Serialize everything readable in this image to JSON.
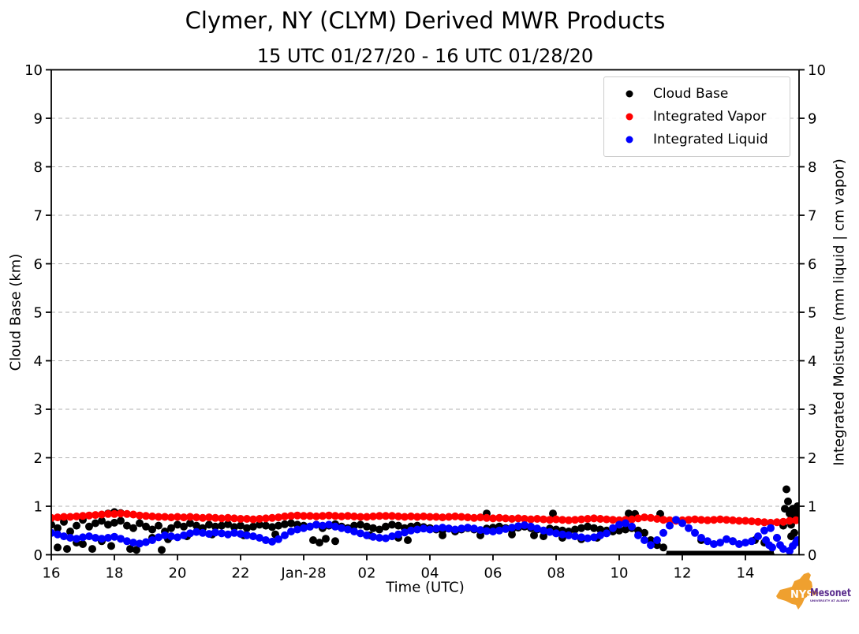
{
  "header": {
    "title": "Clymer, NY (CLYM) Derived MWR Products",
    "subtitle": "15 UTC 01/27/20 - 16 UTC 01/28/20"
  },
  "axes": {
    "x_label": "Time (UTC)",
    "y_left_label": "Cloud Base (km)",
    "y_right_label": "Integrated Moisture (mm liquid | cm vapor)",
    "y_tick_labels": [
      "0",
      "1",
      "2",
      "3",
      "4",
      "5",
      "6",
      "7",
      "8",
      "9",
      "10"
    ],
    "y_tick_values": [
      0,
      1,
      2,
      3,
      4,
      5,
      6,
      7,
      8,
      9,
      10
    ],
    "x_tick_labels": [
      "16",
      "18",
      "20",
      "22",
      "Jan-28",
      "02",
      "04",
      "06",
      "08",
      "10",
      "12",
      "14"
    ],
    "x_tick_hours": [
      16,
      18,
      20,
      22,
      24,
      26,
      28,
      30,
      32,
      34,
      36,
      38
    ]
  },
  "legend": {
    "items": [
      {
        "label": "Cloud Base",
        "color": "#000000"
      },
      {
        "label": "Integrated Vapor",
        "color": "#ff0000"
      },
      {
        "label": "Integrated Liquid",
        "color": "#0000ff"
      }
    ]
  },
  "logo": {
    "org": "NYS",
    "name": "Mesonet",
    "tagline": "UNIVERSITY AT ALBANY",
    "state_color": "#EFA02F",
    "org_color": "#ffffff",
    "text_color": "#5B2D8E"
  },
  "chart_data": {
    "type": "scatter",
    "title": "Clymer, NY (CLYM) Derived MWR Products",
    "subtitle": "15 UTC 01/27/20 - 16 UTC 01/28/20",
    "xlabel": "Time (UTC)",
    "ylabel_left": "Cloud Base (km)",
    "ylabel_right": "Integrated Moisture (mm liquid | cm vapor)",
    "x_unit": "hours UTC from 00:00 Jan-27; values >= 24 are Jan-28",
    "xlim": [
      16.0,
      39.7
    ],
    "ylim": [
      0,
      10
    ],
    "grid": "horizontal dashed at integers",
    "legend_position": "upper right",
    "t_start": 16.0,
    "t_step": 0.2,
    "series": [
      {
        "name": "Cloud Base",
        "color": "#000000",
        "values": [
          0.62,
          0.55,
          0.68,
          0.48,
          0.6,
          0.72,
          0.58,
          0.65,
          0.7,
          0.62,
          0.66,
          0.7,
          0.6,
          0.55,
          0.65,
          0.58,
          0.52,
          0.6,
          0.48,
          0.55,
          0.62,
          0.58,
          0.65,
          0.6,
          0.55,
          0.62,
          0.58,
          0.6,
          0.63,
          0.57,
          0.6,
          0.55,
          0.58,
          0.62,
          0.6,
          0.57,
          0.6,
          0.63,
          0.65,
          0.62,
          0.6,
          0.58,
          0.62,
          0.55,
          0.6,
          0.63,
          0.58,
          0.55,
          0.6,
          0.62,
          0.58,
          0.55,
          0.52,
          0.58,
          0.62,
          0.6,
          0.55,
          0.58,
          0.6,
          0.57,
          0.55,
          0.52,
          0.5,
          0.54,
          0.48,
          0.52,
          0.55,
          0.52,
          0.5,
          0.54,
          0.56,
          0.58,
          0.55,
          0.52,
          0.56,
          0.58,
          0.55,
          0.52,
          0.5,
          0.54,
          0.52,
          0.5,
          0.48,
          0.52,
          0.55,
          0.58,
          0.55,
          0.52,
          0.5,
          0.48,
          0.5,
          0.52,
          0.55,
          0.5,
          0.45,
          0.3,
          0.2,
          0.15,
          0.0,
          0.0,
          0.0,
          0.0,
          0.0,
          0.0,
          0.0,
          0.0,
          0.0,
          0.0,
          0.0,
          0.0,
          0.0,
          0.0,
          0.0,
          0.0,
          0.0,
          0.35,
          0.6,
          0.85,
          0.8
        ],
        "extra_points": [
          [
            16.2,
            0.15
          ],
          [
            16.5,
            0.12
          ],
          [
            16.8,
            0.25
          ],
          [
            17.0,
            0.22
          ],
          [
            17.3,
            0.12
          ],
          [
            17.6,
            0.28
          ],
          [
            17.9,
            0.18
          ],
          [
            17.8,
            0.85
          ],
          [
            18.0,
            0.88
          ],
          [
            18.2,
            0.86
          ],
          [
            18.5,
            0.12
          ],
          [
            18.7,
            0.1
          ],
          [
            19.2,
            0.35
          ],
          [
            19.5,
            0.1
          ],
          [
            19.7,
            0.32
          ],
          [
            20.3,
            0.38
          ],
          [
            21.1,
            0.42
          ],
          [
            22.1,
            0.4
          ],
          [
            23.1,
            0.42
          ],
          [
            24.3,
            0.3
          ],
          [
            24.5,
            0.25
          ],
          [
            24.7,
            0.33
          ],
          [
            25.0,
            0.28
          ],
          [
            26.1,
            0.4
          ],
          [
            27.0,
            0.35
          ],
          [
            27.3,
            0.3
          ],
          [
            28.4,
            0.4
          ],
          [
            29.6,
            0.4
          ],
          [
            29.8,
            0.85
          ],
          [
            30.6,
            0.42
          ],
          [
            31.3,
            0.4
          ],
          [
            31.6,
            0.38
          ],
          [
            31.9,
            0.85
          ],
          [
            32.2,
            0.35
          ],
          [
            32.8,
            0.32
          ],
          [
            33.3,
            0.35
          ],
          [
            34.3,
            0.85
          ],
          [
            34.5,
            0.84
          ],
          [
            35.3,
            0.84
          ],
          [
            36.6,
            0.3
          ],
          [
            37.6,
            0.28
          ],
          [
            38.3,
            0.3
          ],
          [
            38.6,
            0.25
          ],
          [
            39.25,
            0.95
          ],
          [
            39.3,
            1.35
          ],
          [
            39.35,
            1.1
          ],
          [
            39.4,
            0.9
          ],
          [
            39.45,
            0.62
          ],
          [
            39.5,
            0.95
          ],
          [
            39.55,
            0.78
          ],
          [
            39.6,
            0.9
          ],
          [
            39.65,
            1.0
          ],
          [
            39.45,
            0.38
          ],
          [
            39.55,
            0.45
          ]
        ],
        "zero_run": {
          "t_start": 35.5,
          "t_end": 38.9,
          "value": 0
        }
      },
      {
        "name": "Integrated Vapor",
        "color": "#ff0000",
        "values": [
          0.76,
          0.77,
          0.78,
          0.78,
          0.79,
          0.8,
          0.81,
          0.82,
          0.83,
          0.84,
          0.84,
          0.85,
          0.84,
          0.83,
          0.81,
          0.8,
          0.79,
          0.78,
          0.78,
          0.77,
          0.78,
          0.77,
          0.78,
          0.77,
          0.76,
          0.77,
          0.76,
          0.75,
          0.76,
          0.75,
          0.74,
          0.74,
          0.73,
          0.74,
          0.75,
          0.76,
          0.77,
          0.79,
          0.8,
          0.81,
          0.8,
          0.8,
          0.79,
          0.8,
          0.81,
          0.8,
          0.79,
          0.8,
          0.79,
          0.78,
          0.78,
          0.79,
          0.8,
          0.8,
          0.8,
          0.79,
          0.78,
          0.79,
          0.78,
          0.79,
          0.78,
          0.78,
          0.77,
          0.78,
          0.79,
          0.78,
          0.77,
          0.76,
          0.77,
          0.76,
          0.75,
          0.76,
          0.75,
          0.74,
          0.75,
          0.74,
          0.73,
          0.74,
          0.73,
          0.72,
          0.73,
          0.72,
          0.71,
          0.72,
          0.73,
          0.74,
          0.75,
          0.74,
          0.73,
          0.72,
          0.71,
          0.72,
          0.73,
          0.75,
          0.77,
          0.76,
          0.74,
          0.72,
          0.71,
          0.7,
          0.71,
          0.72,
          0.73,
          0.72,
          0.71,
          0.72,
          0.73,
          0.72,
          0.71,
          0.7,
          0.7,
          0.69,
          0.68,
          0.67,
          0.66,
          0.67,
          0.68,
          0.7,
          0.71
        ],
        "extra_points": []
      },
      {
        "name": "Integrated Liquid",
        "color": "#0000ff",
        "values": [
          0.45,
          0.42,
          0.38,
          0.35,
          0.33,
          0.36,
          0.38,
          0.35,
          0.33,
          0.35,
          0.37,
          0.33,
          0.28,
          0.25,
          0.23,
          0.26,
          0.3,
          0.36,
          0.4,
          0.38,
          0.36,
          0.4,
          0.44,
          0.47,
          0.45,
          0.43,
          0.46,
          0.44,
          0.42,
          0.45,
          0.43,
          0.4,
          0.38,
          0.35,
          0.3,
          0.27,
          0.32,
          0.4,
          0.48,
          0.52,
          0.55,
          0.58,
          0.62,
          0.6,
          0.62,
          0.58,
          0.55,
          0.52,
          0.48,
          0.44,
          0.4,
          0.37,
          0.35,
          0.34,
          0.38,
          0.42,
          0.46,
          0.5,
          0.52,
          0.54,
          0.52,
          0.54,
          0.56,
          0.54,
          0.52,
          0.54,
          0.56,
          0.54,
          0.51,
          0.49,
          0.48,
          0.5,
          0.53,
          0.56,
          0.59,
          0.61,
          0.58,
          0.54,
          0.5,
          0.47,
          0.44,
          0.42,
          0.4,
          0.38,
          0.36,
          0.34,
          0.36,
          0.4,
          0.44,
          0.55,
          0.62,
          0.65,
          0.58,
          0.4,
          0.3,
          0.2,
          0.3,
          0.45,
          0.6,
          0.72,
          0.65,
          0.55,
          0.45,
          0.35,
          0.28,
          0.22,
          0.25,
          0.32,
          0.28,
          0.22,
          0.25,
          0.28,
          0.38,
          0.5,
          0.55,
          0.35,
          0.12,
          0.08,
          0.25
        ],
        "extra_points": [
          [
            38.65,
            0.3
          ],
          [
            38.75,
            0.2
          ],
          [
            38.85,
            0.15
          ],
          [
            39.1,
            0.2
          ],
          [
            39.5,
            0.18
          ],
          [
            39.65,
            0.3
          ]
        ]
      }
    ]
  },
  "style": {
    "grid_color": "#b0b0b0",
    "axis_color": "#000000",
    "marker_radius": 5
  }
}
